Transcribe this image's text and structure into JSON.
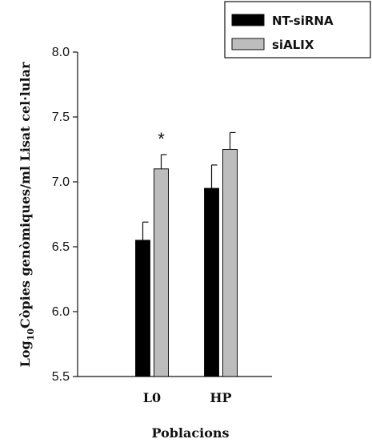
{
  "chart_data": {
    "type": "bar",
    "categories": [
      "L0",
      "HP"
    ],
    "series": [
      {
        "name": "NT-siRNA",
        "values": [
          6.55,
          6.95
        ],
        "errors": [
          0.14,
          0.18
        ],
        "color": "#000000"
      },
      {
        "name": "siALIX",
        "values": [
          7.1,
          7.25
        ],
        "errors": [
          0.11,
          0.13
        ],
        "color": "#bdbdbd"
      }
    ],
    "ylim": [
      5.5,
      8.0
    ],
    "yticks": [
      "5.5",
      "6.0",
      "6.5",
      "7.0",
      "7.5",
      "8.0"
    ],
    "ylabel_prefix": "Log",
    "ylabel_sub": "10",
    "ylabel_rest": "Còpies genòmiques/ml Lisat cel·lular",
    "xlabel": "Poblacions",
    "legend_position": "top-right",
    "annotations": [
      {
        "text": "*",
        "category": "L0",
        "series": "siALIX"
      }
    ]
  }
}
